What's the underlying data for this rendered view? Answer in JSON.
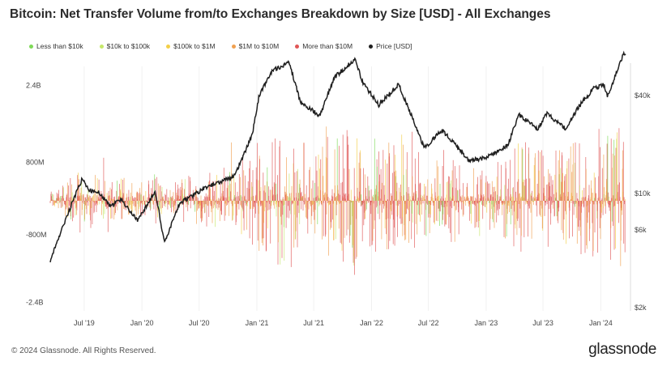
{
  "header": {
    "title": "Bitcoin: Net Transfer Volume from/to Exchanges Breakdown by Size [USD] - All Exchanges"
  },
  "legend": [
    {
      "label": "Less than $10k",
      "color": "#7ed957"
    },
    {
      "label": "$10k to $100k",
      "color": "#c6e86a"
    },
    {
      "label": "$100k to $1M",
      "color": "#f3cf48"
    },
    {
      "label": "$1M to $10M",
      "color": "#f0a050"
    },
    {
      "label": "More than $10M",
      "color": "#e05656"
    },
    {
      "label": "Price [USD]",
      "color": "#1f1f1f"
    }
  ],
  "footer": {
    "copyright": "© 2024 Glassnode. All Rights Reserved.",
    "logo": "glassnode"
  },
  "chart_data": {
    "type": "bar",
    "title": "Bitcoin: Net Transfer Volume from/to Exchanges Breakdown by Size [USD] - All Exchanges",
    "x_ticks": [
      "Jul '19",
      "Jan '20",
      "Jul '20",
      "Jan '21",
      "Jul '21",
      "Jan '22",
      "Jul '22",
      "Jan '23",
      "Jul '23",
      "Jan '24"
    ],
    "x_range": [
      "2019-03-15",
      "2024-03-20"
    ],
    "y_left": {
      "ticks": [
        "2.4B",
        "800M",
        "-800M",
        "-2.4B"
      ],
      "ylim": [
        -2600000000.0,
        2800000000.0
      ],
      "scale": "linear"
    },
    "y_right": {
      "ticks": [
        "$40k",
        "$10k",
        "$6k",
        "$2k"
      ],
      "tick_values": [
        40000,
        10000,
        6000,
        2000
      ],
      "scale": "log"
    },
    "grid": false,
    "legend_position": "top-left",
    "price_series": {
      "name": "Price [USD]",
      "color": "#1f1f1f",
      "points": [
        [
          "2019-03-15",
          3900
        ],
        [
          "2019-04-05",
          5000
        ],
        [
          "2019-05-15",
          8000
        ],
        [
          "2019-06-26",
          12500
        ],
        [
          "2019-07-15",
          10500
        ],
        [
          "2019-08-15",
          10200
        ],
        [
          "2019-09-25",
          8300
        ],
        [
          "2019-10-26",
          9300
        ],
        [
          "2019-12-18",
          6800
        ],
        [
          "2020-02-13",
          10300
        ],
        [
          "2020-03-12",
          5000
        ],
        [
          "2020-04-30",
          8800
        ],
        [
          "2020-06-01",
          9500
        ],
        [
          "2020-07-27",
          11000
        ],
        [
          "2020-10-21",
          12800
        ],
        [
          "2020-12-17",
          23000
        ],
        [
          "2021-01-08",
          40000
        ],
        [
          "2021-02-20",
          57000
        ],
        [
          "2021-04-14",
          63500
        ],
        [
          "2021-05-19",
          37000
        ],
        [
          "2021-07-20",
          30000
        ],
        [
          "2021-09-06",
          52000
        ],
        [
          "2021-11-10",
          67000
        ],
        [
          "2021-12-04",
          48000
        ],
        [
          "2022-01-24",
          35000
        ],
        [
          "2022-03-28",
          47000
        ],
        [
          "2022-05-12",
          29000
        ],
        [
          "2022-06-18",
          19000
        ],
        [
          "2022-08-13",
          24500
        ],
        [
          "2022-11-09",
          16000
        ],
        [
          "2022-12-30",
          16500
        ],
        [
          "2023-03-12",
          20000
        ],
        [
          "2023-04-14",
          30500
        ],
        [
          "2023-06-15",
          25000
        ],
        [
          "2023-07-13",
          31000
        ],
        [
          "2023-09-11",
          25000
        ],
        [
          "2023-10-24",
          34500
        ],
        [
          "2023-12-08",
          44000
        ],
        [
          "2024-01-11",
          46500
        ],
        [
          "2024-01-23",
          39500
        ],
        [
          "2024-02-14",
          51500
        ],
        [
          "2024-03-13",
          72000
        ]
      ]
    },
    "volume_series": [
      {
        "name": "Less than $10k",
        "color": "#7ed957"
      },
      {
        "name": "$10k to $100k",
        "color": "#c6e86a"
      },
      {
        "name": "$100k to $1M",
        "color": "#f3cf48"
      },
      {
        "name": "$1M to $10M",
        "color": "#f0a050"
      },
      {
        "name": "More than $10M",
        "color": "#e05656"
      }
    ]
  }
}
